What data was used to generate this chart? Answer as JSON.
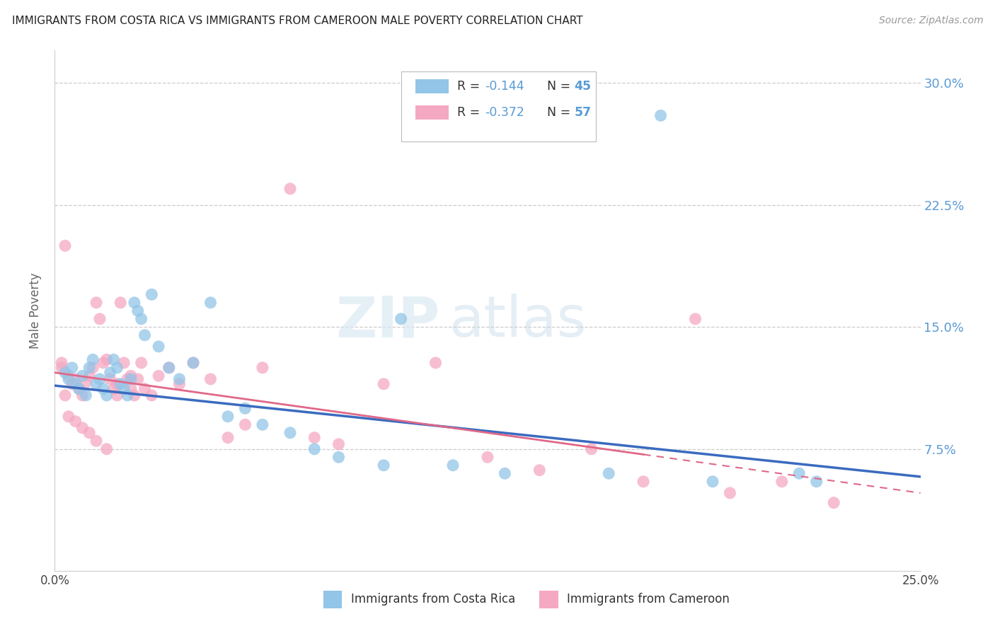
{
  "title": "IMMIGRANTS FROM COSTA RICA VS IMMIGRANTS FROM CAMEROON MALE POVERTY CORRELATION CHART",
  "source": "Source: ZipAtlas.com",
  "ylabel": "Male Poverty",
  "ytick_labels": [
    "7.5%",
    "15.0%",
    "22.5%",
    "30.0%"
  ],
  "ytick_values": [
    0.075,
    0.15,
    0.225,
    0.3
  ],
  "xmin": 0.0,
  "xmax": 0.25,
  "ymin": 0.0,
  "ymax": 0.32,
  "legend_r1": "-0.144",
  "legend_n1": "45",
  "legend_r2": "-0.372",
  "legend_n2": "57",
  "color_blue": "#92C5E8",
  "color_pink": "#F5A8C2",
  "color_blue_line": "#3A6BBF",
  "color_pink_line": "#E06888",
  "legend_label1": "Immigrants from Costa Rica",
  "legend_label2": "Immigrants from Cameroon",
  "blue_x": [
    0.003,
    0.004,
    0.005,
    0.006,
    0.007,
    0.008,
    0.009,
    0.01,
    0.011,
    0.012,
    0.013,
    0.014,
    0.015,
    0.016,
    0.017,
    0.018,
    0.019,
    0.02,
    0.021,
    0.022,
    0.023,
    0.024,
    0.025,
    0.026,
    0.028,
    0.03,
    0.033,
    0.036,
    0.04,
    0.045,
    0.05,
    0.055,
    0.06,
    0.068,
    0.075,
    0.082,
    0.095,
    0.1,
    0.115,
    0.13,
    0.16,
    0.175,
    0.19,
    0.215,
    0.22
  ],
  "blue_y": [
    0.122,
    0.118,
    0.125,
    0.115,
    0.112,
    0.12,
    0.108,
    0.125,
    0.13,
    0.115,
    0.118,
    0.112,
    0.108,
    0.122,
    0.13,
    0.125,
    0.115,
    0.112,
    0.108,
    0.118,
    0.165,
    0.16,
    0.155,
    0.145,
    0.17,
    0.138,
    0.125,
    0.118,
    0.128,
    0.165,
    0.095,
    0.1,
    0.09,
    0.085,
    0.075,
    0.07,
    0.065,
    0.155,
    0.065,
    0.06,
    0.06,
    0.28,
    0.055,
    0.06,
    0.055
  ],
  "pink_x": [
    0.002,
    0.003,
    0.004,
    0.005,
    0.006,
    0.007,
    0.008,
    0.009,
    0.01,
    0.011,
    0.012,
    0.013,
    0.014,
    0.015,
    0.016,
    0.017,
    0.018,
    0.019,
    0.02,
    0.021,
    0.022,
    0.023,
    0.024,
    0.025,
    0.026,
    0.028,
    0.03,
    0.033,
    0.036,
    0.04,
    0.045,
    0.05,
    0.055,
    0.06,
    0.068,
    0.075,
    0.082,
    0.095,
    0.11,
    0.125,
    0.14,
    0.155,
    0.17,
    0.185,
    0.195,
    0.21,
    0.225,
    0.002,
    0.003,
    0.004,
    0.006,
    0.008,
    0.01,
    0.012,
    0.015,
    0.018,
    0.022
  ],
  "pink_y": [
    0.125,
    0.2,
    0.12,
    0.115,
    0.118,
    0.112,
    0.108,
    0.116,
    0.12,
    0.125,
    0.165,
    0.155,
    0.128,
    0.13,
    0.118,
    0.112,
    0.108,
    0.165,
    0.128,
    0.118,
    0.112,
    0.108,
    0.118,
    0.128,
    0.112,
    0.108,
    0.12,
    0.125,
    0.115,
    0.128,
    0.118,
    0.082,
    0.09,
    0.125,
    0.235,
    0.082,
    0.078,
    0.115,
    0.128,
    0.07,
    0.062,
    0.075,
    0.055,
    0.155,
    0.048,
    0.055,
    0.042,
    0.128,
    0.108,
    0.095,
    0.092,
    0.088,
    0.085,
    0.08,
    0.075,
    0.115,
    0.12
  ]
}
